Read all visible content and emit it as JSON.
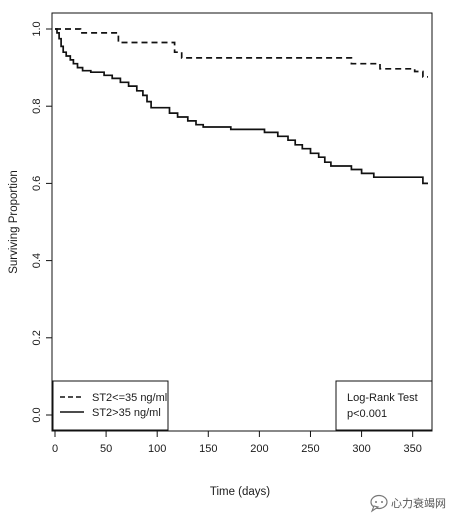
{
  "chart_data": {
    "type": "line",
    "subtype": "kaplan-meier step",
    "title": "",
    "xlabel": "Time (days)",
    "ylabel": "Surviving Proportion",
    "xlim": [
      0,
      365
    ],
    "ylim": [
      0.0,
      1.0
    ],
    "x_ticks": [
      "0",
      "50",
      "100",
      "150",
      "200",
      "250",
      "300",
      "350"
    ],
    "y_ticks": [
      "0.0",
      "0.2",
      "0.4",
      "0.6",
      "0.8",
      "1.0"
    ],
    "grid": false,
    "legend_position": "bottom-left",
    "series": [
      {
        "name": "ST2<=35 ng/ml",
        "line_style": "dashed",
        "color": "#111111",
        "points": [
          [
            0,
            1.0
          ],
          [
            25,
            1.0
          ],
          [
            25,
            0.99
          ],
          [
            62,
            0.99
          ],
          [
            62,
            0.965
          ],
          [
            117,
            0.965
          ],
          [
            117,
            0.94
          ],
          [
            124,
            0.94
          ],
          [
            124,
            0.925
          ],
          [
            290,
            0.925
          ],
          [
            290,
            0.91
          ],
          [
            318,
            0.91
          ],
          [
            318,
            0.897
          ],
          [
            352,
            0.897
          ],
          [
            352,
            0.89
          ],
          [
            360,
            0.89
          ],
          [
            360,
            0.876
          ],
          [
            365,
            0.876
          ]
        ]
      },
      {
        "name": "ST2>35 ng/ml",
        "line_style": "solid",
        "color": "#111111",
        "points": [
          [
            0,
            1.0
          ],
          [
            2,
            1.0
          ],
          [
            2,
            0.99
          ],
          [
            4,
            0.99
          ],
          [
            4,
            0.975
          ],
          [
            6,
            0.975
          ],
          [
            6,
            0.955
          ],
          [
            8,
            0.955
          ],
          [
            8,
            0.94
          ],
          [
            11,
            0.94
          ],
          [
            11,
            0.93
          ],
          [
            15,
            0.93
          ],
          [
            15,
            0.92
          ],
          [
            18,
            0.92
          ],
          [
            18,
            0.91
          ],
          [
            22,
            0.91
          ],
          [
            22,
            0.9
          ],
          [
            27,
            0.9
          ],
          [
            27,
            0.892
          ],
          [
            35,
            0.892
          ],
          [
            35,
            0.888
          ],
          [
            48,
            0.888
          ],
          [
            48,
            0.88
          ],
          [
            56,
            0.88
          ],
          [
            56,
            0.872
          ],
          [
            64,
            0.872
          ],
          [
            64,
            0.862
          ],
          [
            72,
            0.862
          ],
          [
            72,
            0.852
          ],
          [
            80,
            0.852
          ],
          [
            80,
            0.84
          ],
          [
            86,
            0.84
          ],
          [
            86,
            0.828
          ],
          [
            90,
            0.828
          ],
          [
            90,
            0.812
          ],
          [
            94,
            0.812
          ],
          [
            94,
            0.796
          ],
          [
            112,
            0.796
          ],
          [
            112,
            0.782
          ],
          [
            120,
            0.782
          ],
          [
            120,
            0.772
          ],
          [
            130,
            0.772
          ],
          [
            130,
            0.762
          ],
          [
            138,
            0.762
          ],
          [
            138,
            0.752
          ],
          [
            145,
            0.752
          ],
          [
            145,
            0.746
          ],
          [
            172,
            0.746
          ],
          [
            172,
            0.74
          ],
          [
            205,
            0.74
          ],
          [
            205,
            0.732
          ],
          [
            218,
            0.732
          ],
          [
            218,
            0.722
          ],
          [
            228,
            0.722
          ],
          [
            228,
            0.712
          ],
          [
            235,
            0.712
          ],
          [
            235,
            0.7
          ],
          [
            242,
            0.7
          ],
          [
            242,
            0.69
          ],
          [
            250,
            0.69
          ],
          [
            250,
            0.678
          ],
          [
            258,
            0.678
          ],
          [
            258,
            0.668
          ],
          [
            264,
            0.668
          ],
          [
            264,
            0.655
          ],
          [
            270,
            0.655
          ],
          [
            270,
            0.645
          ],
          [
            290,
            0.645
          ],
          [
            290,
            0.636
          ],
          [
            300,
            0.636
          ],
          [
            300,
            0.626
          ],
          [
            312,
            0.626
          ],
          [
            312,
            0.616
          ],
          [
            360,
            0.616
          ],
          [
            360,
            0.6
          ],
          [
            365,
            0.6
          ]
        ]
      }
    ],
    "legend_box": {
      "entries": [
        {
          "label": "ST2<=35 ng/ml",
          "line_style": "dashed"
        },
        {
          "label": "ST2>35 ng/ml",
          "line_style": "solid"
        }
      ]
    },
    "annotation_box": {
      "line1": "Log-Rank Test",
      "line2": "p<0.001"
    }
  },
  "watermark": {
    "text": "心力衰竭网",
    "icon": "chat-bubble-icon"
  }
}
